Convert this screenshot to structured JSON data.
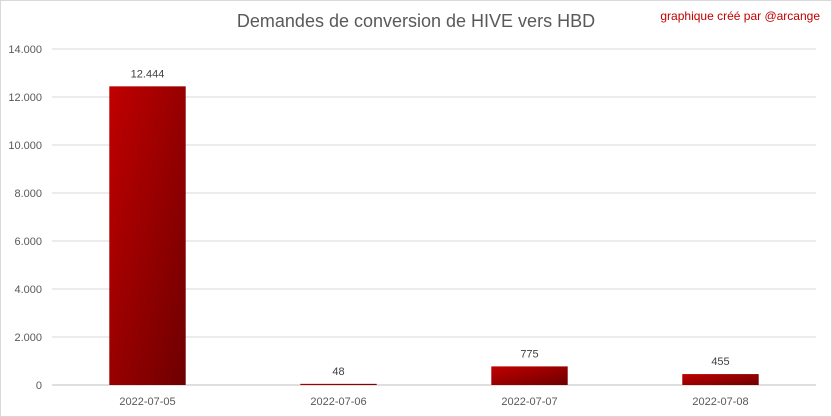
{
  "header": {
    "title": "Demandes de conversion de HIVE vers HBD",
    "credit": "graphique créé par @arcange"
  },
  "chart_data": {
    "type": "bar",
    "title": "Demandes de conversion de HIVE vers HBD",
    "categories": [
      "2022-07-05",
      "2022-07-06",
      "2022-07-07",
      "2022-07-08"
    ],
    "values": [
      12444,
      48,
      775,
      455
    ],
    "data_labels": [
      "12.444",
      "48",
      "775",
      "455"
    ],
    "xlabel": "",
    "ylabel": "",
    "ylim": [
      0,
      14000
    ],
    "yticks": [
      0,
      2000,
      4000,
      6000,
      8000,
      10000,
      12000,
      14000
    ],
    "ytick_labels": [
      "0",
      "2.000",
      "4.000",
      "6.000",
      "8.000",
      "10.000",
      "12.000",
      "14.000"
    ],
    "grid": true,
    "legend": "none",
    "colors": {
      "bar_light": "#c00000",
      "bar_dark": "#6e0000",
      "grid": "#d9d9d9",
      "axis": "#bfbfbf"
    }
  }
}
